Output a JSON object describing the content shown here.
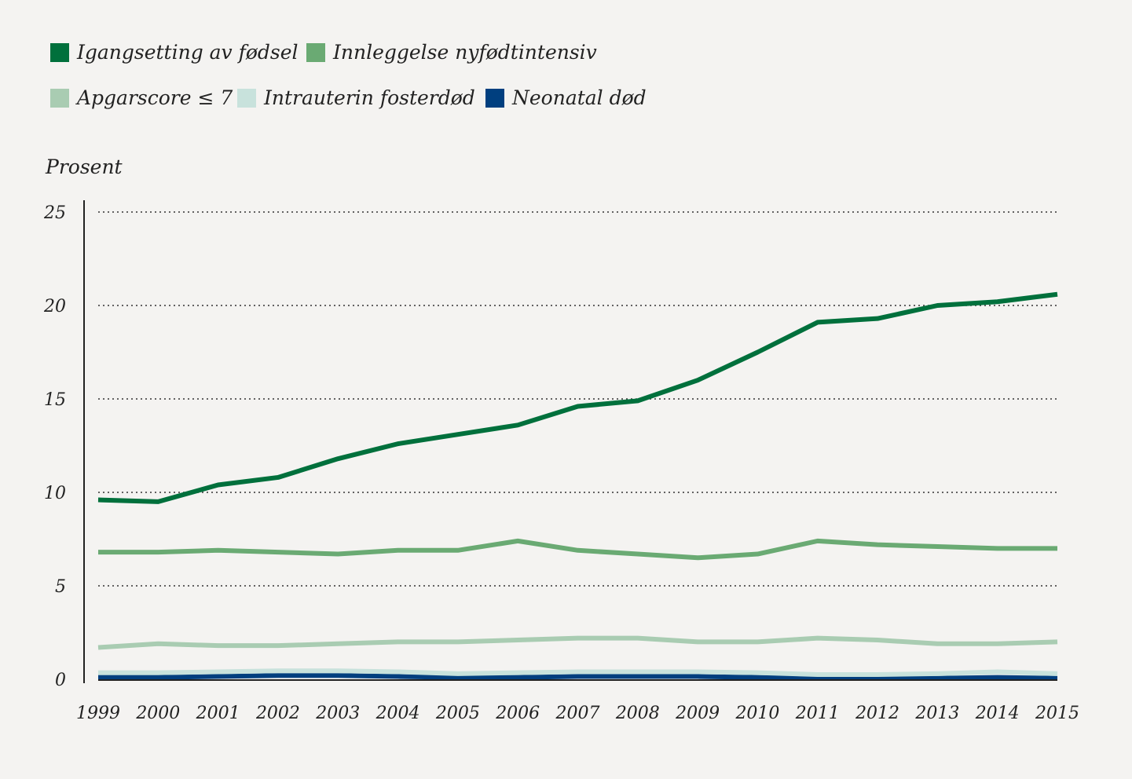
{
  "chart_data": {
    "type": "line",
    "ylabel": "Prosent",
    "ylim": [
      0,
      25
    ],
    "yticks": [
      0,
      5,
      10,
      15,
      20,
      25
    ],
    "grid": "horizontal-dotted",
    "legend_position": "top-left",
    "x": [
      "1999",
      "2000",
      "2001",
      "2002",
      "2003",
      "2004",
      "2005",
      "2006",
      "2007",
      "2008",
      "2009",
      "2010",
      "2011",
      "2012",
      "2013",
      "2014",
      "2015"
    ],
    "series": [
      {
        "name": "Igangsetting av fødsel",
        "color": "#00703c",
        "values": [
          9.6,
          9.5,
          10.4,
          10.8,
          11.8,
          12.6,
          13.1,
          13.6,
          14.6,
          14.9,
          16.0,
          17.5,
          19.1,
          19.3,
          20.0,
          20.2,
          20.6
        ]
      },
      {
        "name": "Innleggelse nyfødtintensiv",
        "color": "#6aaa73",
        "values": [
          6.8,
          6.8,
          6.9,
          6.8,
          6.7,
          6.9,
          6.9,
          7.4,
          6.9,
          6.7,
          6.5,
          6.7,
          7.4,
          7.2,
          7.1,
          7.0,
          7.0
        ]
      },
      {
        "name": "Apgarscore ≤ 7",
        "color": "#a9ccb2",
        "values": [
          1.7,
          1.9,
          1.8,
          1.8,
          1.9,
          2.0,
          2.0,
          2.1,
          2.2,
          2.2,
          2.0,
          2.0,
          2.2,
          2.1,
          1.9,
          1.9,
          2.0
        ]
      },
      {
        "name": "Intrauterin fosterdød",
        "color": "#c8e2dc",
        "values": [
          0.35,
          0.35,
          0.4,
          0.45,
          0.45,
          0.4,
          0.3,
          0.35,
          0.4,
          0.4,
          0.4,
          0.35,
          0.25,
          0.25,
          0.3,
          0.4,
          0.3
        ]
      },
      {
        "name": "Neonatal død",
        "color": "#003f7f",
        "values": [
          0.1,
          0.1,
          0.15,
          0.2,
          0.2,
          0.15,
          0.1,
          0.1,
          0.15,
          0.15,
          0.15,
          0.1,
          0.05,
          0.05,
          0.05,
          0.1,
          0.05
        ]
      }
    ]
  }
}
